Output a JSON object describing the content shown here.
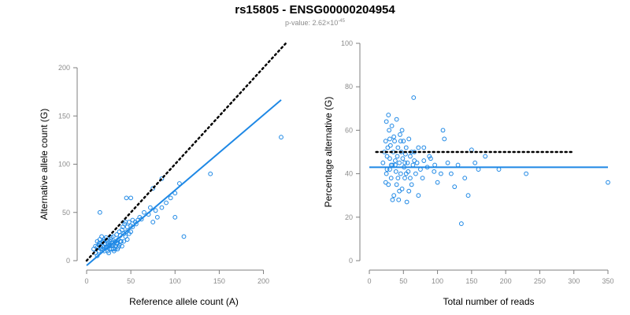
{
  "title": "rs15805 - ENSG00000204954",
  "subtitle_prefix": "p-value: 2.62×10",
  "subtitle_exponent": "-45",
  "colors": {
    "points": "#1e88e5",
    "fit": "#1e88e5",
    "reference": "#000000",
    "axis": "#7f7f7f"
  },
  "chart_data": [
    {
      "type": "scatter",
      "xlabel": "Reference allele count (A)",
      "ylabel": "Alternative allele count (G)",
      "xlim": [
        0,
        220
      ],
      "ylim": [
        0,
        200
      ],
      "xticks": [
        0,
        50,
        100,
        150,
        200
      ],
      "yticks": [
        0,
        50,
        100,
        150,
        200
      ],
      "points": [
        [
          8,
          12
        ],
        [
          10,
          15
        ],
        [
          12,
          20
        ],
        [
          14,
          18
        ],
        [
          15,
          22
        ],
        [
          16,
          12
        ],
        [
          17,
          25
        ],
        [
          18,
          15
        ],
        [
          19,
          20
        ],
        [
          20,
          10
        ],
        [
          21,
          18
        ],
        [
          22,
          24
        ],
        [
          23,
          14
        ],
        [
          24,
          20
        ],
        [
          25,
          8
        ],
        [
          26,
          16
        ],
        [
          27,
          22
        ],
        [
          28,
          12
        ],
        [
          29,
          18
        ],
        [
          30,
          25
        ],
        [
          31,
          10
        ],
        [
          32,
          20
        ],
        [
          33,
          15
        ],
        [
          34,
          27
        ],
        [
          35,
          18
        ],
        [
          36,
          22
        ],
        [
          37,
          30
        ],
        [
          38,
          26
        ],
        [
          39,
          20
        ],
        [
          40,
          32
        ],
        [
          41,
          35
        ],
        [
          42,
          28
        ],
        [
          43,
          38
        ],
        [
          44,
          40
        ],
        [
          45,
          30
        ],
        [
          46,
          35
        ],
        [
          48,
          40
        ],
        [
          50,
          36
        ],
        [
          52,
          42
        ],
        [
          55,
          40
        ],
        [
          60,
          45
        ],
        [
          62,
          43
        ],
        [
          65,
          50
        ],
        [
          70,
          48
        ],
        [
          72,
          55
        ],
        [
          75,
          40
        ],
        [
          78,
          52
        ],
        [
          80,
          45
        ],
        [
          85,
          55
        ],
        [
          90,
          60
        ],
        [
          95,
          65
        ],
        [
          100,
          45
        ],
        [
          100,
          70
        ],
        [
          105,
          80
        ],
        [
          110,
          25
        ],
        [
          10,
          8
        ],
        [
          12,
          5
        ],
        [
          14,
          10
        ],
        [
          16,
          18
        ],
        [
          18,
          20
        ],
        [
          20,
          22
        ],
        [
          22,
          14
        ],
        [
          24,
          10
        ],
        [
          26,
          20
        ],
        [
          28,
          24
        ],
        [
          30,
          16
        ],
        [
          32,
          12
        ],
        [
          34,
          18
        ],
        [
          36,
          14
        ],
        [
          38,
          20
        ],
        [
          15,
          50
        ],
        [
          45,
          65
        ],
        [
          50,
          65
        ],
        [
          75,
          75
        ],
        [
          85,
          85
        ],
        [
          40,
          15
        ],
        [
          30,
          12
        ],
        [
          25,
          15
        ],
        [
          20,
          14
        ],
        [
          18,
          12
        ],
        [
          12,
          14
        ],
        [
          14,
          16
        ],
        [
          16,
          14
        ],
        [
          24,
          18
        ],
        [
          26,
          12
        ],
        [
          28,
          16
        ],
        [
          33,
          20
        ],
        [
          35,
          12
        ],
        [
          37,
          16
        ],
        [
          42,
          20
        ],
        [
          44,
          25
        ],
        [
          46,
          22
        ],
        [
          48,
          28
        ],
        [
          50,
          30
        ],
        [
          52,
          35
        ],
        [
          56,
          38
        ],
        [
          58,
          42
        ],
        [
          140,
          90
        ],
        [
          220,
          128
        ]
      ],
      "fit_line": {
        "intercept": -5,
        "slope": 0.78
      },
      "reference_line": {
        "intercept": 0,
        "slope": 1
      },
      "fit_x_range": [
        0,
        220
      ],
      "reference_x_range": [
        0,
        225
      ]
    },
    {
      "type": "scatter",
      "xlabel": "Total number of reads",
      "ylabel": "Percentage alternative (G)",
      "xlim": [
        0,
        350
      ],
      "ylim": [
        0,
        100
      ],
      "xticks": [
        0,
        50,
        100,
        150,
        200,
        250,
        300,
        350
      ],
      "yticks": [
        0,
        20,
        40,
        60,
        80,
        100
      ],
      "points": [
        [
          20,
          45
        ],
        [
          22,
          50
        ],
        [
          24,
          55
        ],
        [
          25,
          40
        ],
        [
          26,
          48
        ],
        [
          27,
          52
        ],
        [
          28,
          35
        ],
        [
          29,
          60
        ],
        [
          30,
          42
        ],
        [
          30,
          47
        ],
        [
          31,
          53
        ],
        [
          32,
          38
        ],
        [
          33,
          62
        ],
        [
          34,
          44
        ],
        [
          35,
          50
        ],
        [
          36,
          30
        ],
        [
          37,
          55
        ],
        [
          38,
          46
        ],
        [
          39,
          41
        ],
        [
          40,
          65
        ],
        [
          40,
          35
        ],
        [
          41,
          48
        ],
        [
          42,
          52
        ],
        [
          43,
          28
        ],
        [
          44,
          45
        ],
        [
          45,
          58
        ],
        [
          46,
          40
        ],
        [
          47,
          50
        ],
        [
          48,
          33
        ],
        [
          49,
          47
        ],
        [
          50,
          55
        ],
        [
          51,
          43
        ],
        [
          52,
          38
        ],
        [
          53,
          49
        ],
        [
          54,
          52
        ],
        [
          55,
          27
        ],
        [
          56,
          45
        ],
        [
          57,
          41
        ],
        [
          58,
          56
        ],
        [
          60,
          48
        ],
        [
          62,
          35
        ],
        [
          64,
          44
        ],
        [
          65,
          75
        ],
        [
          66,
          50
        ],
        [
          68,
          40
        ],
        [
          70,
          45
        ],
        [
          72,
          52
        ],
        [
          75,
          42
        ],
        [
          78,
          38
        ],
        [
          80,
          46
        ],
        [
          85,
          43
        ],
        [
          90,
          47
        ],
        [
          95,
          41
        ],
        [
          100,
          36
        ],
        [
          105,
          40
        ],
        [
          108,
          60
        ],
        [
          110,
          56
        ],
        [
          115,
          45
        ],
        [
          120,
          40
        ],
        [
          125,
          34
        ],
        [
          130,
          44
        ],
        [
          135,
          17
        ],
        [
          140,
          38
        ],
        [
          145,
          30
        ],
        [
          150,
          51
        ],
        [
          155,
          45
        ],
        [
          160,
          42
        ],
        [
          170,
          48
        ],
        [
          190,
          42
        ],
        [
          230,
          40
        ],
        [
          350,
          36
        ],
        [
          25,
          64
        ],
        [
          28,
          67
        ],
        [
          32,
          44
        ],
        [
          36,
          57
        ],
        [
          42,
          38
        ],
        [
          46,
          55
        ],
        [
          52,
          45
        ],
        [
          58,
          32
        ],
        [
          62,
          50
        ],
        [
          24,
          36
        ],
        [
          34,
          28
        ],
        [
          44,
          32
        ],
        [
          48,
          60
        ],
        [
          38,
          44
        ],
        [
          30,
          56
        ],
        [
          26,
          42
        ],
        [
          54,
          40
        ],
        [
          60,
          38
        ],
        [
          66,
          46
        ],
        [
          72,
          30
        ],
        [
          80,
          52
        ],
        [
          88,
          48
        ],
        [
          96,
          44
        ]
      ],
      "fit_line_y": 43,
      "reference_line_y": 50,
      "fit_x_range": [
        0,
        350
      ],
      "reference_x_range": [
        10,
        300
      ]
    }
  ]
}
